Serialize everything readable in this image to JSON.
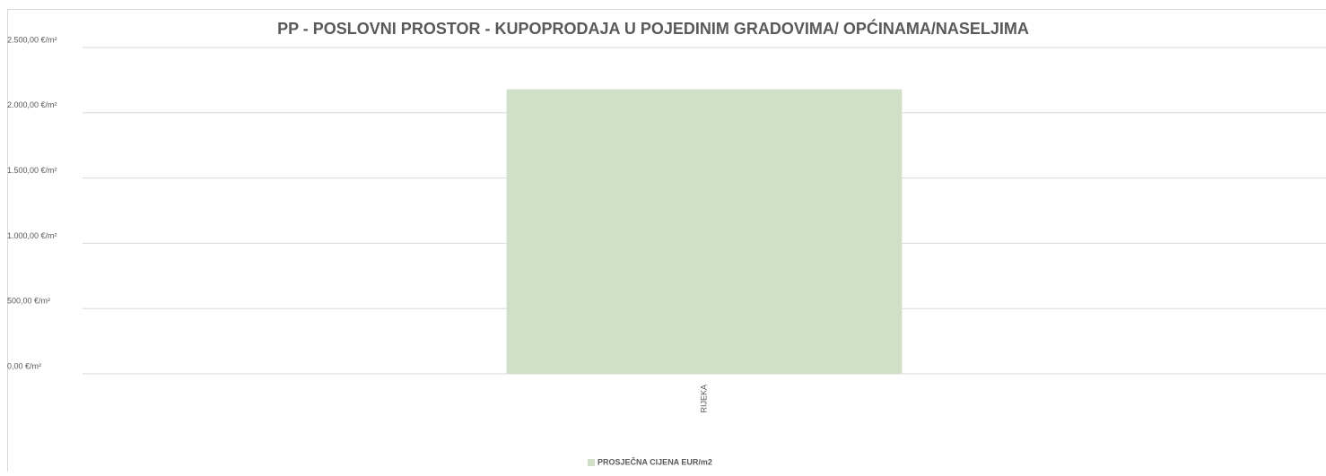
{
  "chart_data": {
    "type": "bar",
    "title": "PP - POSLOVNI PROSTOR - KUPOPRODAJA U POJEDINIM GRADOVIMA/ OPĆINAMA/NASELJIMA",
    "categories": [
      "RIJEKA"
    ],
    "series": [
      {
        "name": "PROSJEČNA CIJENA EUR/m2",
        "color": "#d0dfc8",
        "values": [
          2180
        ]
      }
    ],
    "ylim": [
      0,
      2500
    ],
    "yticks": [
      {
        "value": 0,
        "label": "0,00 €/m²"
      },
      {
        "value": 500,
        "label": "500,00 €/m²"
      },
      {
        "value": 1000,
        "label": "1.000,00 €/m²"
      },
      {
        "value": 1500,
        "label": "1.500,00 €/m²"
      },
      {
        "value": 2000,
        "label": "2.000,00 €/m²"
      },
      {
        "value": 2500,
        "label": "2.500,00 €/m²"
      }
    ],
    "grid": true,
    "legend": "bottom"
  }
}
